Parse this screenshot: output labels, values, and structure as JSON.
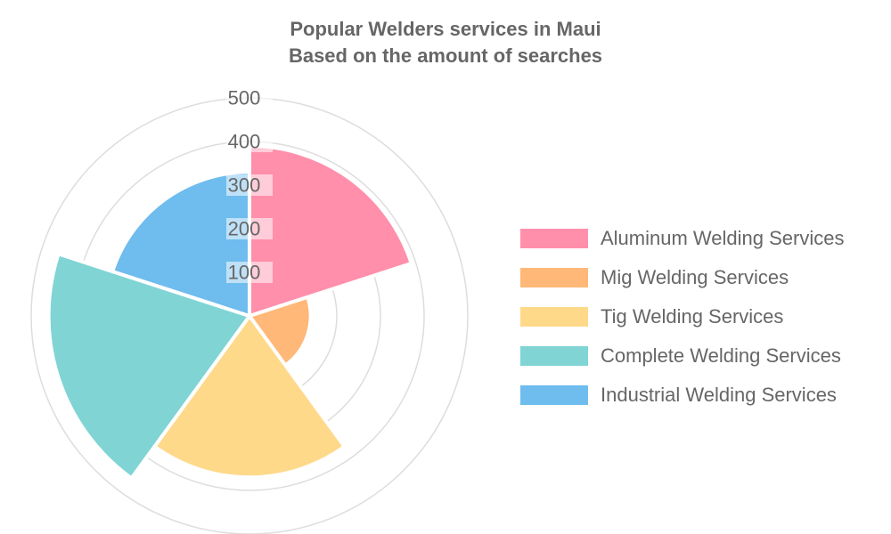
{
  "chart_data": {
    "type": "polarArea",
    "title": [
      "Popular Welders services in Maui",
      "Based on the amount of searches"
    ],
    "categories": [
      "Aluminum Welding Services",
      "Mig Welding Services",
      "Tig Welding Services",
      "Complete Welding Services",
      "Industrial Welding Services"
    ],
    "values": [
      390,
      140,
      370,
      460,
      330
    ],
    "colors": [
      "#ff8fab",
      "#ffb877",
      "#ffd98a",
      "#80d4d4",
      "#6fbcee"
    ],
    "r_ticks": [
      "100",
      "200",
      "300",
      "400",
      "500"
    ],
    "r_max": 500,
    "grid": true,
    "legend_position": "right"
  }
}
